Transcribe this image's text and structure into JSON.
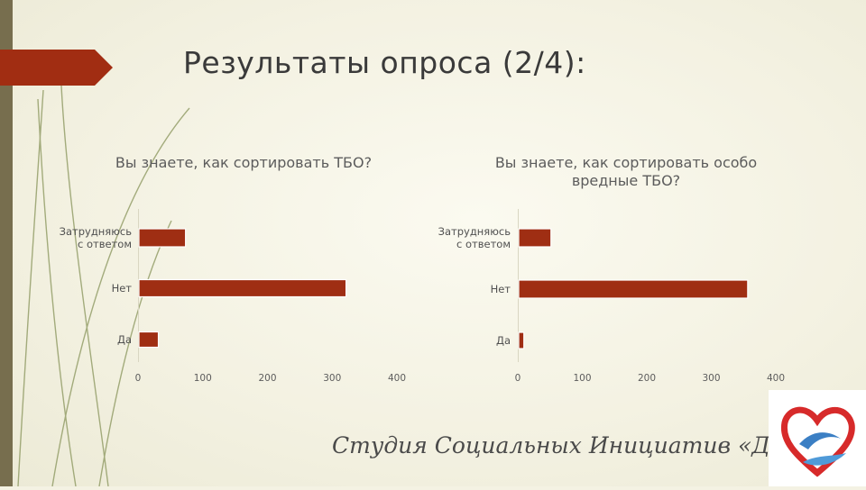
{
  "slide": {
    "title": "Результаты опроса (2/4):",
    "footer_text": "Студия Социальных Инициатив «Данко»",
    "accent_color": "#9f2e13",
    "strip_color": "#776e4e"
  },
  "chart_data": [
    {
      "type": "bar",
      "orientation": "horizontal",
      "title": "Вы знаете, как сортировать ТБО?",
      "categories": [
        "Затрудняюсь с ответом",
        "Нет",
        "Да"
      ],
      "series": [
        {
          "values": [
            72,
            320,
            30
          ]
        }
      ],
      "xlim": [
        0,
        400
      ],
      "ticks": [
        0,
        100,
        200,
        300,
        400
      ],
      "grid": false,
      "legend": "none",
      "bar_color": "#9f2e13"
    },
    {
      "type": "bar",
      "orientation": "horizontal",
      "title": "Вы знаете, как сортировать особо вредные ТБО?",
      "categories": [
        "Затрудняюсь с ответом",
        "Нет",
        "Да"
      ],
      "series": [
        {
          "values": [
            50,
            355,
            8
          ]
        }
      ],
      "xlim": [
        0,
        400
      ],
      "ticks": [
        0,
        100,
        200,
        300,
        400
      ],
      "grid": false,
      "legend": "none",
      "bar_color": "#9f2e13"
    }
  ]
}
